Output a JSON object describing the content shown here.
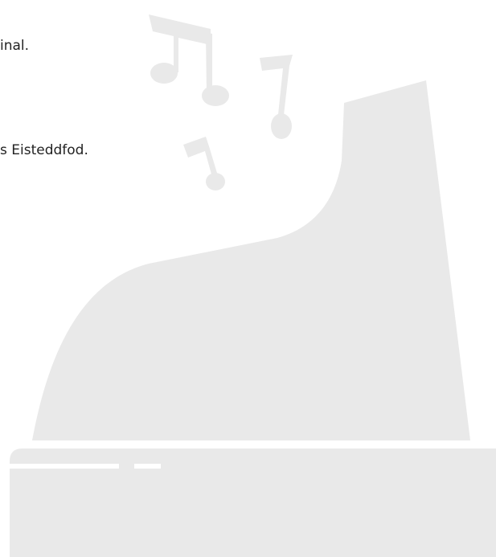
{
  "text": {
    "line_1": "inal.",
    "line_2": "s Eisteddfod."
  }
}
